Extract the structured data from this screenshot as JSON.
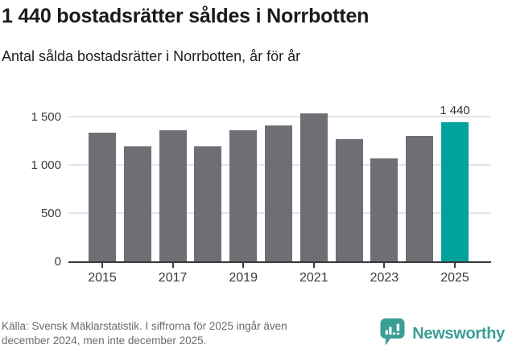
{
  "header": {
    "title": "1 440 bostadsrätter såldes i Norrbotten",
    "subtitle": "Antal sålda bostadsrätter i Norrbotten, år för år"
  },
  "chart_data": {
    "type": "bar",
    "categories": [
      2015,
      2016,
      2017,
      2018,
      2019,
      2020,
      2021,
      2022,
      2023,
      2024,
      2025
    ],
    "values": [
      1335,
      1195,
      1355,
      1195,
      1360,
      1410,
      1535,
      1265,
      1070,
      1300,
      1440
    ],
    "title": "Antal sålda bostadsrätter i Norrbotten, år för år",
    "xlabel": "",
    "ylabel": "",
    "ylim": [
      0,
      1625
    ],
    "grid": true,
    "legend": "none",
    "highlight_index": 10,
    "highlight_label": "1 440",
    "bar_color": "#6F6E74",
    "highlight_color": "#00A39B",
    "yticks": [
      {
        "value": 0,
        "label": "0"
      },
      {
        "value": 500,
        "label": "500"
      },
      {
        "value": 1000,
        "label": "1 000"
      },
      {
        "value": 1500,
        "label": "1 500"
      }
    ],
    "xticks": [
      {
        "year": 2015,
        "label": "2015"
      },
      {
        "year": 2017,
        "label": "2017"
      },
      {
        "year": 2019,
        "label": "2019"
      },
      {
        "year": 2021,
        "label": "2021"
      },
      {
        "year": 2023,
        "label": "2023"
      },
      {
        "year": 2025,
        "label": "2025"
      }
    ]
  },
  "footer": {
    "source_line1": "Källa: Svensk Mäklarstatistik. I siffrorna för 2025 ingår även",
    "source_line2": "december 2024, men inte december 2025.",
    "brand": "Newsworthy",
    "brand_color": "#3B9E96"
  }
}
